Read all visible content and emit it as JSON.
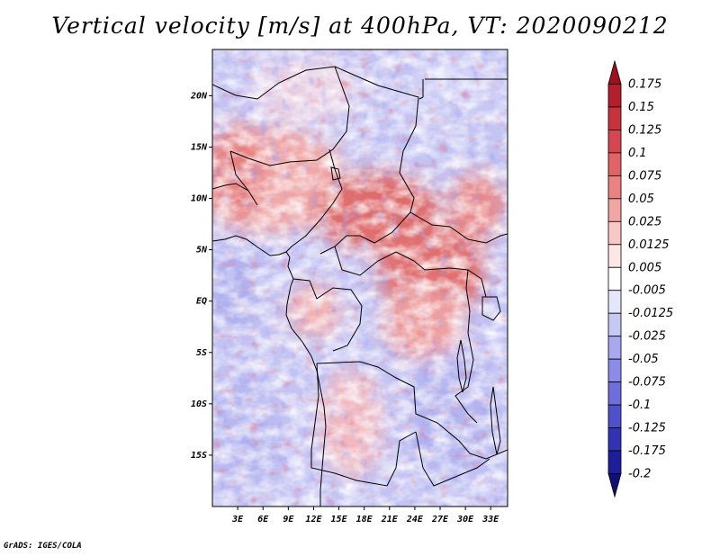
{
  "title": "Vertical velocity [m/s] at 400hPa, VT: 2020090212",
  "credit": "GrADS: IGES/COLA",
  "chart_data": {
    "type": "heatmap",
    "variable": "Vertical velocity",
    "units": "m/s",
    "level": "400hPa",
    "valid_time": "2020090212",
    "x_range_deg": [
      0,
      35
    ],
    "y_range_deg": [
      -20,
      24.5
    ],
    "x_ticks": [
      {
        "value": 3,
        "label": "3E"
      },
      {
        "value": 6,
        "label": "6E"
      },
      {
        "value": 9,
        "label": "9E"
      },
      {
        "value": 12,
        "label": "12E"
      },
      {
        "value": 15,
        "label": "15E"
      },
      {
        "value": 18,
        "label": "18E"
      },
      {
        "value": 21,
        "label": "21E"
      },
      {
        "value": 24,
        "label": "24E"
      },
      {
        "value": 27,
        "label": "27E"
      },
      {
        "value": 30,
        "label": "30E"
      },
      {
        "value": 33,
        "label": "33E"
      }
    ],
    "y_ticks": [
      {
        "value": 20,
        "label": "20N"
      },
      {
        "value": 15,
        "label": "15N"
      },
      {
        "value": 10,
        "label": "10N"
      },
      {
        "value": 5,
        "label": "5N"
      },
      {
        "value": 0,
        "label": "EQ"
      },
      {
        "value": -5,
        "label": "5S"
      },
      {
        "value": -10,
        "label": "10S"
      },
      {
        "value": -15,
        "label": "15S"
      }
    ],
    "colorbar": {
      "levels": [
        "0.175",
        "0.15",
        "0.125",
        "0.1",
        "0.075",
        "0.05",
        "0.025",
        "0.0125",
        "0.005",
        "-0.005",
        "-0.0125",
        "-0.025",
        "-0.05",
        "-0.075",
        "-0.1",
        "-0.125",
        "-0.175",
        "-0.2"
      ],
      "colors": [
        "#a00f1e",
        "#b41e2d",
        "#c8323c",
        "#d74650",
        "#e16464",
        "#eb8282",
        "#f2a5a5",
        "#f8c8c8",
        "#fce6e6",
        "#ffffff",
        "#e6e6fa",
        "#c8c8f5",
        "#a8a8f0",
        "#8c8ce8",
        "#6e6edc",
        "#5050cd",
        "#3232b4",
        "#1e1e9b",
        "#0f0f78"
      ]
    }
  }
}
